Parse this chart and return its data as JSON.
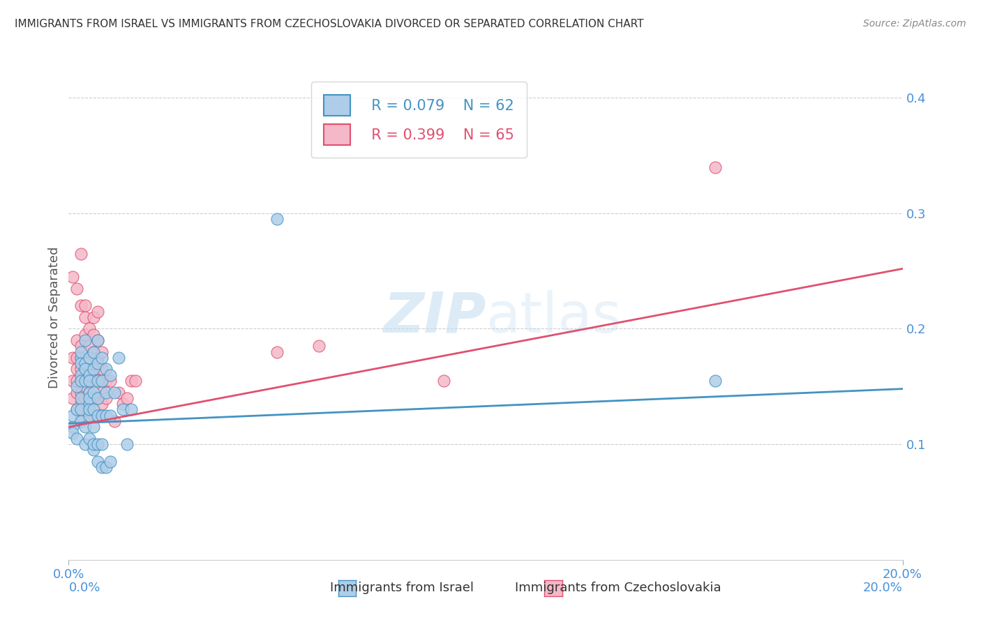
{
  "title": "IMMIGRANTS FROM ISRAEL VS IMMIGRANTS FROM CZECHOSLOVAKIA DIVORCED OR SEPARATED CORRELATION CHART",
  "source": "Source: ZipAtlas.com",
  "xlabel_left": "Immigrants from Israel",
  "xlabel_right": "Immigrants from Czechoslovakia",
  "ylabel": "Divorced or Separated",
  "xlim": [
    0.0,
    0.2
  ],
  "ylim": [
    0.0,
    0.42
  ],
  "xtick_left": 0.0,
  "xtick_right": 0.2,
  "yticks": [
    0.1,
    0.2,
    0.3,
    0.4
  ],
  "legend_r1": "R = 0.079",
  "legend_n1": "N = 62",
  "legend_r2": "R = 0.399",
  "legend_n2": "N = 65",
  "color_blue": "#aecde8",
  "color_pink": "#f4b8c8",
  "color_blue_line": "#4393c3",
  "color_pink_line": "#e05070",
  "watermark_text": "ZIP",
  "watermark_text2": "atlas",
  "blue_points": [
    [
      0.001,
      0.115
    ],
    [
      0.001,
      0.125
    ],
    [
      0.001,
      0.11
    ],
    [
      0.002,
      0.13
    ],
    [
      0.002,
      0.15
    ],
    [
      0.002,
      0.105
    ],
    [
      0.003,
      0.16
    ],
    [
      0.003,
      0.175
    ],
    [
      0.003,
      0.12
    ],
    [
      0.003,
      0.18
    ],
    [
      0.003,
      0.17
    ],
    [
      0.003,
      0.155
    ],
    [
      0.003,
      0.14
    ],
    [
      0.003,
      0.13
    ],
    [
      0.004,
      0.115
    ],
    [
      0.004,
      0.1
    ],
    [
      0.004,
      0.19
    ],
    [
      0.004,
      0.17
    ],
    [
      0.004,
      0.165
    ],
    [
      0.004,
      0.155
    ],
    [
      0.005,
      0.145
    ],
    [
      0.005,
      0.135
    ],
    [
      0.005,
      0.125
    ],
    [
      0.005,
      0.175
    ],
    [
      0.005,
      0.16
    ],
    [
      0.005,
      0.155
    ],
    [
      0.005,
      0.14
    ],
    [
      0.005,
      0.13
    ],
    [
      0.005,
      0.105
    ],
    [
      0.006,
      0.095
    ],
    [
      0.006,
      0.18
    ],
    [
      0.006,
      0.165
    ],
    [
      0.006,
      0.145
    ],
    [
      0.006,
      0.13
    ],
    [
      0.006,
      0.115
    ],
    [
      0.006,
      0.1
    ],
    [
      0.007,
      0.19
    ],
    [
      0.007,
      0.17
    ],
    [
      0.007,
      0.155
    ],
    [
      0.007,
      0.14
    ],
    [
      0.007,
      0.125
    ],
    [
      0.007,
      0.1
    ],
    [
      0.007,
      0.085
    ],
    [
      0.008,
      0.175
    ],
    [
      0.008,
      0.155
    ],
    [
      0.008,
      0.125
    ],
    [
      0.008,
      0.1
    ],
    [
      0.008,
      0.08
    ],
    [
      0.009,
      0.165
    ],
    [
      0.009,
      0.145
    ],
    [
      0.009,
      0.125
    ],
    [
      0.009,
      0.08
    ],
    [
      0.01,
      0.16
    ],
    [
      0.01,
      0.125
    ],
    [
      0.01,
      0.085
    ],
    [
      0.011,
      0.145
    ],
    [
      0.012,
      0.175
    ],
    [
      0.013,
      0.13
    ],
    [
      0.014,
      0.1
    ],
    [
      0.015,
      0.13
    ],
    [
      0.05,
      0.295
    ],
    [
      0.155,
      0.155
    ]
  ],
  "pink_points": [
    [
      0.001,
      0.245
    ],
    [
      0.001,
      0.155
    ],
    [
      0.001,
      0.14
    ],
    [
      0.001,
      0.175
    ],
    [
      0.002,
      0.235
    ],
    [
      0.002,
      0.19
    ],
    [
      0.002,
      0.175
    ],
    [
      0.002,
      0.165
    ],
    [
      0.002,
      0.155
    ],
    [
      0.002,
      0.145
    ],
    [
      0.002,
      0.13
    ],
    [
      0.003,
      0.22
    ],
    [
      0.003,
      0.265
    ],
    [
      0.003,
      0.185
    ],
    [
      0.003,
      0.175
    ],
    [
      0.003,
      0.165
    ],
    [
      0.003,
      0.155
    ],
    [
      0.003,
      0.145
    ],
    [
      0.003,
      0.135
    ],
    [
      0.003,
      0.125
    ],
    [
      0.004,
      0.21
    ],
    [
      0.004,
      0.195
    ],
    [
      0.004,
      0.22
    ],
    [
      0.004,
      0.17
    ],
    [
      0.004,
      0.16
    ],
    [
      0.004,
      0.15
    ],
    [
      0.004,
      0.14
    ],
    [
      0.004,
      0.13
    ],
    [
      0.005,
      0.2
    ],
    [
      0.005,
      0.185
    ],
    [
      0.005,
      0.175
    ],
    [
      0.005,
      0.165
    ],
    [
      0.005,
      0.155
    ],
    [
      0.005,
      0.145
    ],
    [
      0.005,
      0.13
    ],
    [
      0.006,
      0.21
    ],
    [
      0.006,
      0.195
    ],
    [
      0.006,
      0.18
    ],
    [
      0.006,
      0.17
    ],
    [
      0.006,
      0.16
    ],
    [
      0.006,
      0.14
    ],
    [
      0.006,
      0.125
    ],
    [
      0.007,
      0.215
    ],
    [
      0.007,
      0.19
    ],
    [
      0.007,
      0.175
    ],
    [
      0.007,
      0.155
    ],
    [
      0.007,
      0.14
    ],
    [
      0.007,
      0.125
    ],
    [
      0.008,
      0.18
    ],
    [
      0.008,
      0.165
    ],
    [
      0.008,
      0.145
    ],
    [
      0.008,
      0.135
    ],
    [
      0.009,
      0.155
    ],
    [
      0.009,
      0.14
    ],
    [
      0.01,
      0.155
    ],
    [
      0.011,
      0.12
    ],
    [
      0.012,
      0.145
    ],
    [
      0.013,
      0.135
    ],
    [
      0.014,
      0.14
    ],
    [
      0.015,
      0.155
    ],
    [
      0.016,
      0.155
    ],
    [
      0.05,
      0.18
    ],
    [
      0.06,
      0.185
    ],
    [
      0.09,
      0.155
    ],
    [
      0.155,
      0.34
    ]
  ],
  "blue_line_x": [
    0.0,
    0.2
  ],
  "blue_line_y": [
    0.118,
    0.148
  ],
  "pink_line_x": [
    0.0,
    0.2
  ],
  "pink_line_y": [
    0.115,
    0.252
  ]
}
